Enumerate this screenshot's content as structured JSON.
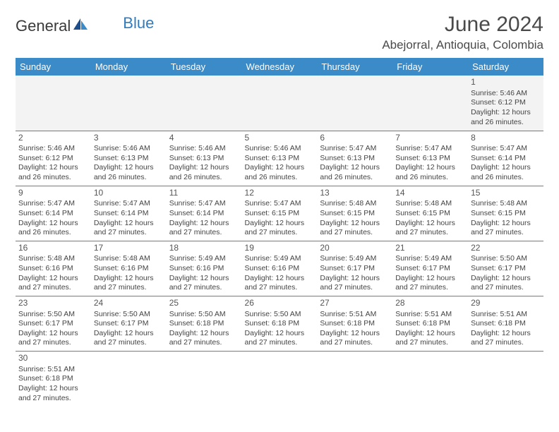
{
  "brand": {
    "part1": "General",
    "part2": "Blue"
  },
  "title": "June 2024",
  "location": "Abejorral, Antioquia, Colombia",
  "colors": {
    "header_bg": "#3b8bc8",
    "header_text": "#ffffff",
    "border": "#3b8bc8",
    "body_text": "#444444",
    "title_text": "#4a4a4a",
    "logo_blue": "#2f7dc0",
    "empty_bg": "#f3f3f3"
  },
  "weekdays": [
    "Sunday",
    "Monday",
    "Tuesday",
    "Wednesday",
    "Thursday",
    "Friday",
    "Saturday"
  ],
  "weeks": [
    [
      null,
      null,
      null,
      null,
      null,
      null,
      {
        "d": "1",
        "sr": "Sunrise: 5:46 AM",
        "ss": "Sunset: 6:12 PM",
        "dl1": "Daylight: 12 hours",
        "dl2": "and 26 minutes."
      }
    ],
    [
      {
        "d": "2",
        "sr": "Sunrise: 5:46 AM",
        "ss": "Sunset: 6:12 PM",
        "dl1": "Daylight: 12 hours",
        "dl2": "and 26 minutes."
      },
      {
        "d": "3",
        "sr": "Sunrise: 5:46 AM",
        "ss": "Sunset: 6:13 PM",
        "dl1": "Daylight: 12 hours",
        "dl2": "and 26 minutes."
      },
      {
        "d": "4",
        "sr": "Sunrise: 5:46 AM",
        "ss": "Sunset: 6:13 PM",
        "dl1": "Daylight: 12 hours",
        "dl2": "and 26 minutes."
      },
      {
        "d": "5",
        "sr": "Sunrise: 5:46 AM",
        "ss": "Sunset: 6:13 PM",
        "dl1": "Daylight: 12 hours",
        "dl2": "and 26 minutes."
      },
      {
        "d": "6",
        "sr": "Sunrise: 5:47 AM",
        "ss": "Sunset: 6:13 PM",
        "dl1": "Daylight: 12 hours",
        "dl2": "and 26 minutes."
      },
      {
        "d": "7",
        "sr": "Sunrise: 5:47 AM",
        "ss": "Sunset: 6:13 PM",
        "dl1": "Daylight: 12 hours",
        "dl2": "and 26 minutes."
      },
      {
        "d": "8",
        "sr": "Sunrise: 5:47 AM",
        "ss": "Sunset: 6:14 PM",
        "dl1": "Daylight: 12 hours",
        "dl2": "and 26 minutes."
      }
    ],
    [
      {
        "d": "9",
        "sr": "Sunrise: 5:47 AM",
        "ss": "Sunset: 6:14 PM",
        "dl1": "Daylight: 12 hours",
        "dl2": "and 26 minutes."
      },
      {
        "d": "10",
        "sr": "Sunrise: 5:47 AM",
        "ss": "Sunset: 6:14 PM",
        "dl1": "Daylight: 12 hours",
        "dl2": "and 27 minutes."
      },
      {
        "d": "11",
        "sr": "Sunrise: 5:47 AM",
        "ss": "Sunset: 6:14 PM",
        "dl1": "Daylight: 12 hours",
        "dl2": "and 27 minutes."
      },
      {
        "d": "12",
        "sr": "Sunrise: 5:47 AM",
        "ss": "Sunset: 6:15 PM",
        "dl1": "Daylight: 12 hours",
        "dl2": "and 27 minutes."
      },
      {
        "d": "13",
        "sr": "Sunrise: 5:48 AM",
        "ss": "Sunset: 6:15 PM",
        "dl1": "Daylight: 12 hours",
        "dl2": "and 27 minutes."
      },
      {
        "d": "14",
        "sr": "Sunrise: 5:48 AM",
        "ss": "Sunset: 6:15 PM",
        "dl1": "Daylight: 12 hours",
        "dl2": "and 27 minutes."
      },
      {
        "d": "15",
        "sr": "Sunrise: 5:48 AM",
        "ss": "Sunset: 6:15 PM",
        "dl1": "Daylight: 12 hours",
        "dl2": "and 27 minutes."
      }
    ],
    [
      {
        "d": "16",
        "sr": "Sunrise: 5:48 AM",
        "ss": "Sunset: 6:16 PM",
        "dl1": "Daylight: 12 hours",
        "dl2": "and 27 minutes."
      },
      {
        "d": "17",
        "sr": "Sunrise: 5:48 AM",
        "ss": "Sunset: 6:16 PM",
        "dl1": "Daylight: 12 hours",
        "dl2": "and 27 minutes."
      },
      {
        "d": "18",
        "sr": "Sunrise: 5:49 AM",
        "ss": "Sunset: 6:16 PM",
        "dl1": "Daylight: 12 hours",
        "dl2": "and 27 minutes."
      },
      {
        "d": "19",
        "sr": "Sunrise: 5:49 AM",
        "ss": "Sunset: 6:16 PM",
        "dl1": "Daylight: 12 hours",
        "dl2": "and 27 minutes."
      },
      {
        "d": "20",
        "sr": "Sunrise: 5:49 AM",
        "ss": "Sunset: 6:17 PM",
        "dl1": "Daylight: 12 hours",
        "dl2": "and 27 minutes."
      },
      {
        "d": "21",
        "sr": "Sunrise: 5:49 AM",
        "ss": "Sunset: 6:17 PM",
        "dl1": "Daylight: 12 hours",
        "dl2": "and 27 minutes."
      },
      {
        "d": "22",
        "sr": "Sunrise: 5:50 AM",
        "ss": "Sunset: 6:17 PM",
        "dl1": "Daylight: 12 hours",
        "dl2": "and 27 minutes."
      }
    ],
    [
      {
        "d": "23",
        "sr": "Sunrise: 5:50 AM",
        "ss": "Sunset: 6:17 PM",
        "dl1": "Daylight: 12 hours",
        "dl2": "and 27 minutes."
      },
      {
        "d": "24",
        "sr": "Sunrise: 5:50 AM",
        "ss": "Sunset: 6:17 PM",
        "dl1": "Daylight: 12 hours",
        "dl2": "and 27 minutes."
      },
      {
        "d": "25",
        "sr": "Sunrise: 5:50 AM",
        "ss": "Sunset: 6:18 PM",
        "dl1": "Daylight: 12 hours",
        "dl2": "and 27 minutes."
      },
      {
        "d": "26",
        "sr": "Sunrise: 5:50 AM",
        "ss": "Sunset: 6:18 PM",
        "dl1": "Daylight: 12 hours",
        "dl2": "and 27 minutes."
      },
      {
        "d": "27",
        "sr": "Sunrise: 5:51 AM",
        "ss": "Sunset: 6:18 PM",
        "dl1": "Daylight: 12 hours",
        "dl2": "and 27 minutes."
      },
      {
        "d": "28",
        "sr": "Sunrise: 5:51 AM",
        "ss": "Sunset: 6:18 PM",
        "dl1": "Daylight: 12 hours",
        "dl2": "and 27 minutes."
      },
      {
        "d": "29",
        "sr": "Sunrise: 5:51 AM",
        "ss": "Sunset: 6:18 PM",
        "dl1": "Daylight: 12 hours",
        "dl2": "and 27 minutes."
      }
    ],
    [
      {
        "d": "30",
        "sr": "Sunrise: 5:51 AM",
        "ss": "Sunset: 6:18 PM",
        "dl1": "Daylight: 12 hours",
        "dl2": "and 27 minutes."
      },
      null,
      null,
      null,
      null,
      null,
      null
    ]
  ]
}
